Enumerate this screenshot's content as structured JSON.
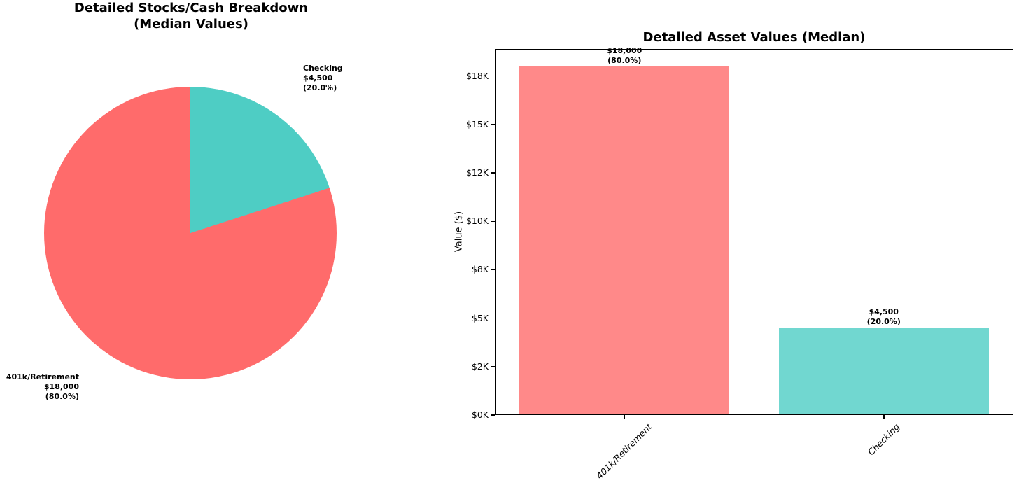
{
  "background": "#ffffff",
  "chart_data": [
    {
      "type": "pie",
      "title": "Detailed Stocks/Cash Breakdown\n(Median Values)",
      "start_angle": "top",
      "direction": "clockwise",
      "legend": "none",
      "slices": [
        {
          "label": "Checking",
          "value": 4500,
          "percent": 20.0,
          "color": "#4ECDC4",
          "annotation": "Checking\n$4,500\n(20.0%)"
        },
        {
          "label": "401k/Retirement",
          "value": 18000,
          "percent": 80.0,
          "color": "#FF6B6B",
          "annotation": "401k/Retirement\n$18,000\n(80.0%)"
        }
      ]
    },
    {
      "type": "bar",
      "title": "Detailed Asset Values (Median)",
      "xlabel": "",
      "ylabel": "Value ($)",
      "categories": [
        "401k/Retirement",
        "Checking"
      ],
      "values": [
        18000,
        4500
      ],
      "bar_colors": [
        "#FF6B6B",
        "#4ECDC4"
      ],
      "bar_fill_alpha": 0.8,
      "bar_value_labels": [
        "$18,000\n(80.0%)",
        "$4,500\n(20.0%)"
      ],
      "yticks": [
        {
          "value": 0,
          "label": "$0K"
        },
        {
          "value": 2500,
          "label": "$2K"
        },
        {
          "value": 5000,
          "label": "$5K"
        },
        {
          "value": 7500,
          "label": "$8K"
        },
        {
          "value": 10000,
          "label": "$10K"
        },
        {
          "value": 12500,
          "label": "$12K"
        },
        {
          "value": 15000,
          "label": "$15K"
        },
        {
          "value": 17500,
          "label": "$18K"
        }
      ],
      "ylim": [
        0,
        18900
      ],
      "grid": false,
      "legend": "none"
    }
  ]
}
